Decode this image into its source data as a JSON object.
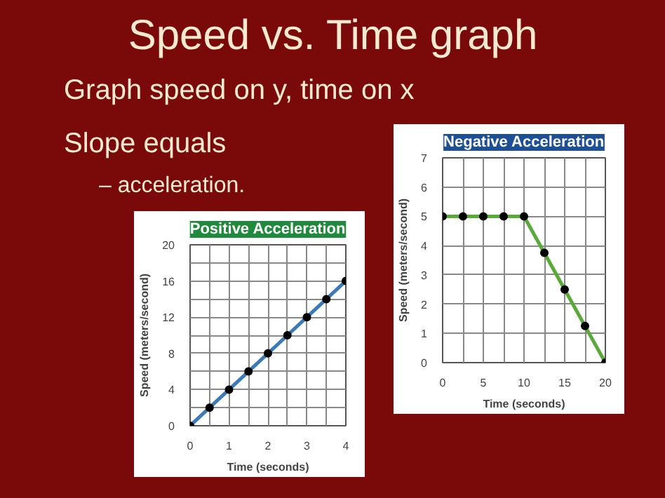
{
  "chart_data": [
    {
      "type": "other",
      "title": "Speed vs. Time graph",
      "annotations": [
        "Graph speed on y, time on x",
        "Slope equals",
        "– acceleration."
      ]
    },
    {
      "type": "line",
      "title": "Positive Acceleration",
      "xlabel": "Time (seconds)",
      "ylabel": "Speed (meters/second)",
      "marker": "circle",
      "grid": true,
      "xlim": [
        0,
        4
      ],
      "ylim": [
        0,
        20
      ],
      "xticks": [
        0,
        {
          "value": 0.5,
          "label": null
        },
        1,
        {
          "value": 1.5,
          "label": null
        },
        2,
        {
          "value": 2.5,
          "label": null
        },
        3,
        {
          "value": 3.5,
          "label": null
        },
        4
      ],
      "yticks": [
        0,
        {
          "value": 2,
          "label": null
        },
        4,
        {
          "value": 6,
          "label": null
        },
        8,
        {
          "value": 10,
          "label": null
        },
        12,
        {
          "value": 14,
          "label": null
        },
        16,
        {
          "value": 18,
          "label": null
        },
        20
      ],
      "x": [
        0,
        0.5,
        1,
        1.5,
        2,
        2.5,
        3,
        3.5,
        4
      ],
      "series": [
        {
          "color": "#3a7ab8",
          "values": [
            0,
            2,
            4,
            6,
            8,
            10,
            12,
            14,
            16
          ]
        }
      ]
    },
    {
      "type": "line",
      "title": "Negative Acceleration",
      "xlabel": "Time (seconds)",
      "ylabel": "Speed (meters/second)",
      "marker": "circle",
      "grid": true,
      "xlim": [
        0,
        20
      ],
      "ylim": [
        0,
        7
      ],
      "xticks": [
        0,
        {
          "value": 2.5,
          "label": null
        },
        5,
        {
          "value": 7.5,
          "label": null
        },
        10,
        {
          "value": 12.5,
          "label": null
        },
        15,
        {
          "value": 17.5,
          "label": null
        },
        20
      ],
      "yticks": [
        0,
        1,
        2,
        3,
        4,
        5,
        6,
        7
      ],
      "x": [
        0,
        2.5,
        5,
        7.5,
        10,
        12.5,
        15,
        17.5,
        20
      ],
      "series": [
        {
          "color": "#5aaa3a",
          "values": [
            5,
            5,
            5,
            5,
            5,
            3.75,
            2.5,
            1.25,
            0
          ]
        }
      ]
    }
  ]
}
